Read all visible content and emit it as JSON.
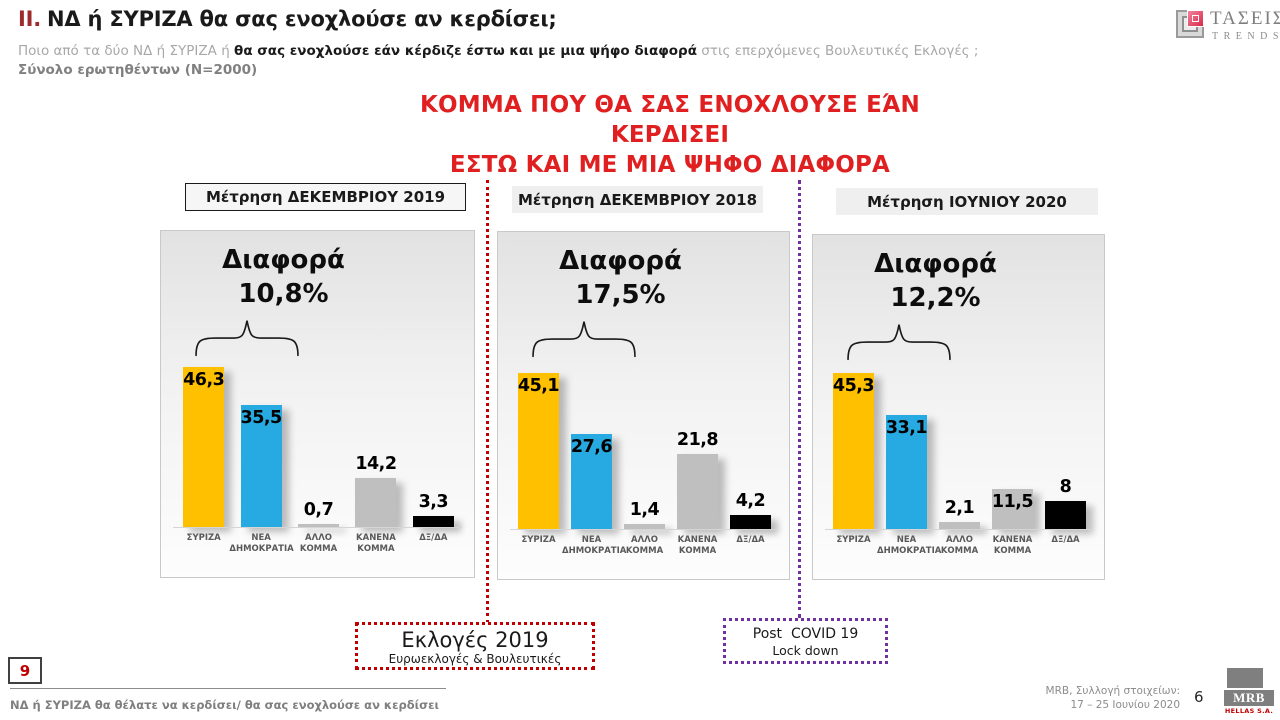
{
  "header": {
    "section_prefix": "II.",
    "title": "ΝΔ  ή ΣΥΡΙΖΑ θα σας ενοχλούσε αν κερδίσει;",
    "subtitle_gray1": "Ποιο από τα δύο ΝΔ ή ΣΥΡΙΖΑ ή ",
    "subtitle_bold": "θα σας ενοχλούσε εάν κέρδιζε έστω και με μια ψήφο διαφορά",
    "subtitle_gray2": " στις επερχόμενες Βουλευτικές Εκλογές ;",
    "sample_note": "Σύνολο ερωτηθέντων (N=2000)"
  },
  "trends_logo": {
    "line1": "ΤΑΣΕΙΣ",
    "line2": "TRENDS"
  },
  "main_title": {
    "line1": "ΚΟΜΜΑ ΠΟΥ ΘΑ ΣΑΣ ΕΝΟΧΛΟΥΣΕ ΕΆΝ ΚΕΡΔΙΣΕΙ",
    "line2": "ΕΣΤΩ ΚΑΙ ΜΕ ΜΙΑ ΨΗΦΟ ΔΙΑΦΟΡΑ"
  },
  "colors": {
    "red_title": "#E02020",
    "dark_red_accent": "#C00000",
    "purple_accent": "#7030A0",
    "syriza_yellow": "#FFC000",
    "nd_blue": "#27AAE1",
    "gray_bar": "#BFBFBF",
    "black_bar": "#000000"
  },
  "chart_data": [
    {
      "type": "bar",
      "title": "Μέτρηση ΔΕΚΕΜΒΡΙΟΥ 2019",
      "difference_label": "Διαφορά",
      "difference_value": "10,8%",
      "categories": [
        "ΣΥΡΙΖΑ",
        "ΝΕΑ ΔΗΜΟΚΡΑΤΙΑ",
        "ΑΛΛΟ ΚΟΜΜΑ",
        "ΚΑΝΕΝΑ ΚΟΜΜΑ",
        "ΔΞ/ΔΑ"
      ],
      "values": [
        46.3,
        35.5,
        0.7,
        14.2,
        3.3
      ],
      "value_labels": [
        "46,3",
        "35,5",
        "0,7",
        "14,2",
        "3,3"
      ],
      "bar_colors": [
        "#FFC000",
        "#27AAE1",
        "#BFBFBF",
        "#BFBFBF",
        "#000000"
      ],
      "label_inside": [
        true,
        true,
        false,
        false,
        false
      ],
      "unit": "%",
      "ylim": [
        0,
        50
      ],
      "grid": false,
      "legend": false
    },
    {
      "type": "bar",
      "title": "Μέτρηση ΔΕΚΕΜΒΡΙΟΥ 2018",
      "difference_label": "Διαφορά",
      "difference_value": "17,5%",
      "categories": [
        "ΣΥΡΙΖΑ",
        "ΝΕΑ ΔΗΜΟΚΡΑΤΙΑ",
        "ΑΛΛΟ ΚΟΜΜΑ",
        "ΚΑΝΕΝΑ ΚΟΜΜΑ",
        "ΔΞ/ΔΑ"
      ],
      "values": [
        45.1,
        27.6,
        1.4,
        21.8,
        4.2
      ],
      "value_labels": [
        "45,1",
        "27,6",
        "1,4",
        "21,8",
        "4,2"
      ],
      "bar_colors": [
        "#FFC000",
        "#27AAE1",
        "#BFBFBF",
        "#BFBFBF",
        "#000000"
      ],
      "label_inside": [
        true,
        true,
        false,
        false,
        false
      ],
      "unit": "%",
      "ylim": [
        0,
        50
      ],
      "grid": false,
      "legend": false
    },
    {
      "type": "bar",
      "title": "Μέτρηση ΙΟΥΝΙΟΥ 2020",
      "difference_label": "Διαφορά",
      "difference_value": "12,2%",
      "categories": [
        "ΣΥΡΙΖΑ",
        "ΝΕΑ ΔΗΜΟΚΡΑΤΙΑ",
        "ΑΛΛΟ ΚΟΜΜΑ",
        "ΚΑΝΕΝΑ ΚΟΜΜΑ",
        "ΔΞ/ΔΑ"
      ],
      "values": [
        45.3,
        33.1,
        2.1,
        11.5,
        8
      ],
      "value_labels": [
        "45,3",
        "33,1",
        "2,1",
        "11,5",
        "8"
      ],
      "bar_colors": [
        "#FFC000",
        "#27AAE1",
        "#BFBFBF",
        "#BFBFBF",
        "#000000"
      ],
      "label_inside": [
        true,
        true,
        false,
        true,
        false
      ],
      "unit": "%",
      "ylim": [
        0,
        50
      ],
      "grid": false,
      "legend": false
    }
  ],
  "callouts": {
    "elections": {
      "line1": "Εκλογές 2019",
      "line2": "Ευρωεκλογές & Βουλευτικές"
    },
    "covid": {
      "line1": "Post  COVID 19",
      "line2": "Lock down"
    }
  },
  "footer": {
    "page_box": "9",
    "bottom_label": "ΝΔ ή ΣΥΡΙΖΑ θα θέλατε να κερδίσει/ θα σας ενοχλούσε αν κερδίσει",
    "source_line1": "MRB, Συλλογή στοιχείων:",
    "source_line2": "17 – 25 Ιουνίου 2020",
    "page_number": "6",
    "mrb_logo_text": "MRB",
    "mrb_logo_sub": "HELLAS S.A."
  }
}
